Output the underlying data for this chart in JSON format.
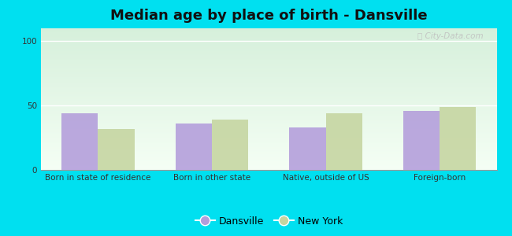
{
  "title": "Median age by place of birth - Dansville",
  "categories": [
    "Born in state of residence",
    "Born in other state",
    "Native, outside of US",
    "Foreign-born"
  ],
  "dansville_values": [
    44,
    36,
    33,
    46
  ],
  "newyork_values": [
    32,
    39,
    44,
    49
  ],
  "dansville_color": "#b39ddb",
  "newyork_color": "#c5d5a0",
  "background_color": "#00e0f0",
  "ylim": [
    0,
    110
  ],
  "yticks": [
    0,
    50,
    100
  ],
  "legend_labels": [
    "Dansville",
    "New York"
  ],
  "bar_width": 0.32,
  "title_fontsize": 13,
  "tick_fontsize": 7.5,
  "legend_fontsize": 9,
  "watermark": "City-Data.com"
}
